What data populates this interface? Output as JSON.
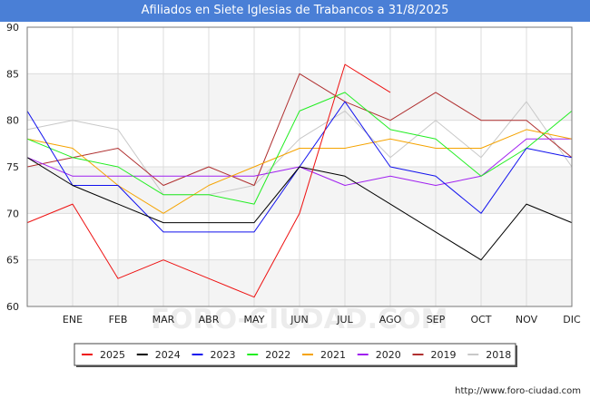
{
  "header": {
    "title": "Afiliados en Siete Iglesias de Trabancos a 31/8/2025"
  },
  "footer": {
    "url": "http://www.foro-ciudad.com"
  },
  "watermark": "FORO-CIUDAD.COM",
  "chart_data": {
    "type": "line",
    "title": "Afiliados en Siete Iglesias de Trabancos a 31/8/2025",
    "categories": [
      "",
      "ENE",
      "FEB",
      "MAR",
      "ABR",
      "MAY",
      "JUN",
      "JUL",
      "AGO",
      "SEP",
      "OCT",
      "NOV",
      "DIC"
    ],
    "ylim": [
      60,
      90
    ],
    "yticks": [
      60,
      65,
      70,
      75,
      80,
      85,
      90
    ],
    "grid": true,
    "legend_position": "bottom",
    "series": [
      {
        "name": "2025",
        "color": "#ee1111",
        "values": [
          69,
          71,
          63,
          65,
          63,
          61,
          70,
          86,
          83,
          null,
          null,
          null,
          null
        ]
      },
      {
        "name": "2024",
        "color": "#000000",
        "values": [
          76,
          73,
          71,
          69,
          69,
          69,
          75,
          74,
          71,
          68,
          65,
          71,
          69
        ]
      },
      {
        "name": "2023",
        "color": "#1111ee",
        "values": [
          81,
          73,
          73,
          68,
          68,
          68,
          75,
          82,
          75,
          74,
          70,
          77,
          76
        ]
      },
      {
        "name": "2022",
        "color": "#22ee22",
        "values": [
          78,
          76,
          75,
          72,
          72,
          71,
          81,
          83,
          79,
          78,
          74,
          77,
          81
        ]
      },
      {
        "name": "2021",
        "color": "#f5a300",
        "values": [
          78,
          77,
          73,
          70,
          73,
          75,
          77,
          77,
          78,
          77,
          77,
          79,
          78
        ]
      },
      {
        "name": "2020",
        "color": "#a020f0",
        "values": [
          76,
          74,
          74,
          74,
          74,
          74,
          75,
          73,
          74,
          73,
          74,
          78,
          78
        ]
      },
      {
        "name": "2019",
        "color": "#b03030",
        "values": [
          75,
          76,
          77,
          73,
          75,
          73,
          85,
          82,
          80,
          83,
          80,
          80,
          76
        ]
      },
      {
        "name": "2018",
        "color": "#c8c8c8",
        "values": [
          79,
          80,
          79,
          72,
          72,
          73,
          78,
          81,
          76,
          80,
          76,
          82,
          75
        ]
      }
    ]
  }
}
